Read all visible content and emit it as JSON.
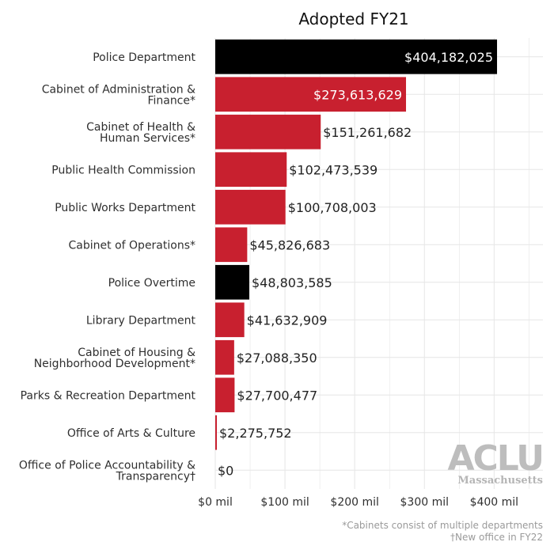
{
  "chart_data": {
    "type": "bar",
    "orientation": "horizontal",
    "title": "Adopted FY21",
    "categories": [
      [
        "Police Department"
      ],
      [
        "Cabinet of Administration &",
        "Finance*"
      ],
      [
        "Cabinet of Health &",
        "Human Services*"
      ],
      [
        "Public Health Commission"
      ],
      [
        "Public Works Department"
      ],
      [
        "Cabinet of Operations*"
      ],
      [
        "Police Overtime"
      ],
      [
        "Library Department"
      ],
      [
        "Cabinet of Housing &",
        "Neighborhood Development*"
      ],
      [
        "Parks & Recreation Department"
      ],
      [
        "Office of Arts & Culture"
      ],
      [
        "Office of Police Accountability &",
        "Transparency†"
      ]
    ],
    "values": [
      404182025,
      273613629,
      151261682,
      102473539,
      100708003,
      45826683,
      48803585,
      41632909,
      27088350,
      27700477,
      2275752,
      0
    ],
    "value_labels": [
      "$404,182,025",
      "$273,613,629",
      "$151,261,682",
      "$102,473,539",
      "$100,708,003",
      "$45,826,683",
      "$48,803,585",
      "$41,632,909",
      "$27,088,350",
      "$27,700,477",
      "$2,275,752",
      "$0"
    ],
    "bar_colors": [
      "#000000",
      "#c8202f",
      "#c8202f",
      "#c8202f",
      "#c8202f",
      "#c8202f",
      "#000000",
      "#c8202f",
      "#c8202f",
      "#c8202f",
      "#c8202f",
      "#c8202f"
    ],
    "xlim": [
      0,
      470000000
    ],
    "xticks": [
      0,
      100000000,
      200000000,
      300000000,
      400000000
    ],
    "xtick_labels": [
      "$0 mil",
      "$100 mil",
      "$200 mil",
      "$300 mil",
      "$400 mil"
    ],
    "xlabel": "",
    "ylabel": "",
    "grid": true,
    "legend": "none"
  },
  "footnotes": [
    "*Cabinets consist of multiple departments",
    "†New office in FY22"
  ],
  "logo": {
    "main": "ACLU",
    "sub": "Massachusetts"
  },
  "colors": {
    "police": "#000000",
    "other": "#c8202f",
    "grid": "#e6e6e6",
    "inside_label": "#ffffff",
    "outside_label": "#222222"
  }
}
